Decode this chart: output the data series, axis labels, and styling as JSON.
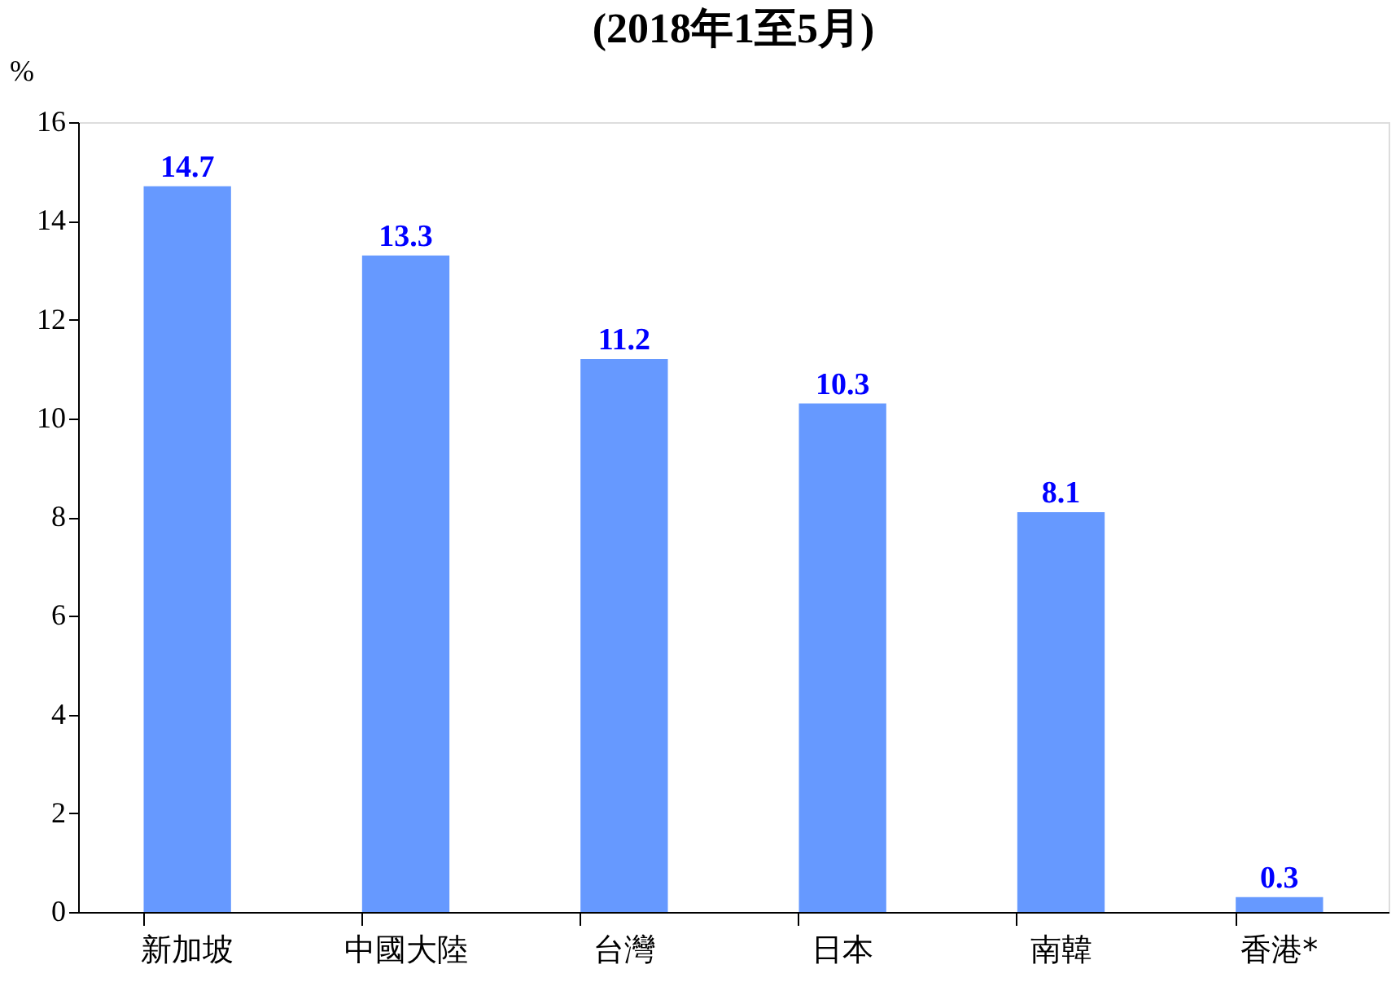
{
  "chart_data": {
    "type": "bar",
    "title": "(2018年1至5月)",
    "ylabel": "%",
    "categories": [
      "新加坡",
      "中國大陸",
      "台灣",
      "日本",
      "南韓",
      "香港*"
    ],
    "values": [
      14.7,
      13.3,
      11.2,
      10.3,
      8.1,
      0.3
    ],
    "color": "#6699ff",
    "ylim": [
      0,
      16
    ],
    "yticks": [
      0,
      2,
      4,
      6,
      8,
      10,
      12,
      14,
      16
    ],
    "grid": false,
    "data_labels": true
  }
}
